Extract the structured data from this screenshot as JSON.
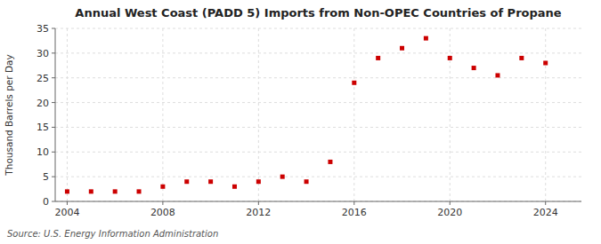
{
  "chart_data": {
    "type": "scatter",
    "title": "Annual West Coast (PADD 5) Imports from Non-OPEC Countries of Propane",
    "ylabel": "Thousand Barrels per Day",
    "annotations": [
      "Source: U.S. Energy Information Administration"
    ],
    "x": [
      2004,
      2005,
      2006,
      2007,
      2008,
      2009,
      2010,
      2011,
      2012,
      2013,
      2014,
      2015,
      2016,
      2017,
      2018,
      2019,
      2020,
      2021,
      2022,
      2023,
      2024
    ],
    "values": [
      2.0,
      2.0,
      2.0,
      2.0,
      3.0,
      4.0,
      4.0,
      3.0,
      4.0,
      5.0,
      4.0,
      8.0,
      24.0,
      29.0,
      31.0,
      33.0,
      29.0,
      27.0,
      25.5,
      29.0,
      28.0
    ],
    "color": "#cc0000",
    "marker": "square",
    "xlim": [
      2003.5,
      2025.5
    ],
    "ylim": [
      0,
      35
    ],
    "xticks": [
      2004,
      2008,
      2012,
      2016,
      2020,
      2024
    ],
    "yticks": [
      0,
      5,
      10,
      15,
      20,
      25,
      30,
      35
    ],
    "grid": true
  }
}
